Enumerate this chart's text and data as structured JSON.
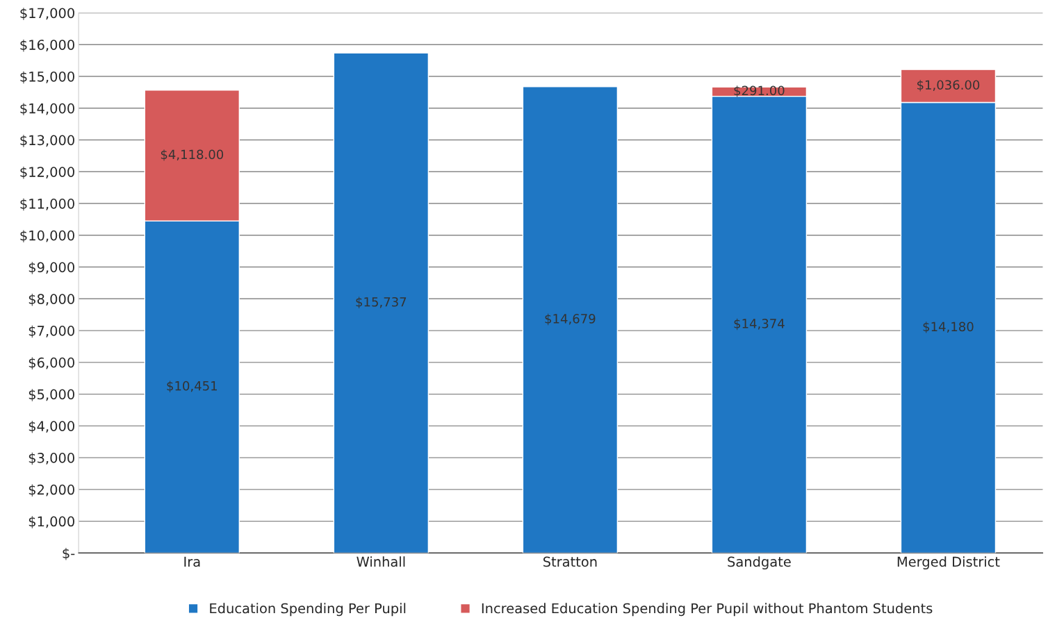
{
  "chart_data": {
    "type": "bar",
    "stacked": true,
    "categories": [
      "Ira",
      "Winhall",
      "Stratton",
      "Sandgate",
      "Merged District"
    ],
    "series": [
      {
        "name": "Education Spending Per Pupil",
        "color": "#1f77c4",
        "values": [
          10451,
          15737,
          14679,
          14374,
          14180
        ],
        "value_labels": [
          "$10,451",
          "$15,737",
          "$14,679",
          "$14,374",
          "$14,180"
        ]
      },
      {
        "name": "Increased Education Spending Per Pupil without Phantom Students",
        "color": "#d65a5a",
        "values": [
          4118,
          null,
          null,
          291,
          1036
        ],
        "value_labels": [
          "$4,118.00",
          null,
          null,
          "$291.00",
          "$1,036.00"
        ]
      }
    ],
    "ylim": [
      0,
      17000
    ],
    "yticks": [
      {
        "value": 0,
        "label": "$-"
      },
      {
        "value": 1000,
        "label": "$1,000"
      },
      {
        "value": 2000,
        "label": "$2,000"
      },
      {
        "value": 3000,
        "label": "$3,000"
      },
      {
        "value": 4000,
        "label": "$4,000"
      },
      {
        "value": 5000,
        "label": "$5,000"
      },
      {
        "value": 6000,
        "label": "$6,000"
      },
      {
        "value": 7000,
        "label": "$7,000"
      },
      {
        "value": 8000,
        "label": "$8,000"
      },
      {
        "value": 9000,
        "label": "$9,000"
      },
      {
        "value": 10000,
        "label": "$10,000"
      },
      {
        "value": 11000,
        "label": "$11,000"
      },
      {
        "value": 12000,
        "label": "$12,000"
      },
      {
        "value": 13000,
        "label": "$13,000"
      },
      {
        "value": 14000,
        "label": "$14,000"
      },
      {
        "value": 15000,
        "label": "$15,000"
      },
      {
        "value": 16000,
        "label": "$16,000"
      },
      {
        "value": 17000,
        "label": "$17,000"
      }
    ],
    "grid": "y",
    "legend": "bottom"
  }
}
